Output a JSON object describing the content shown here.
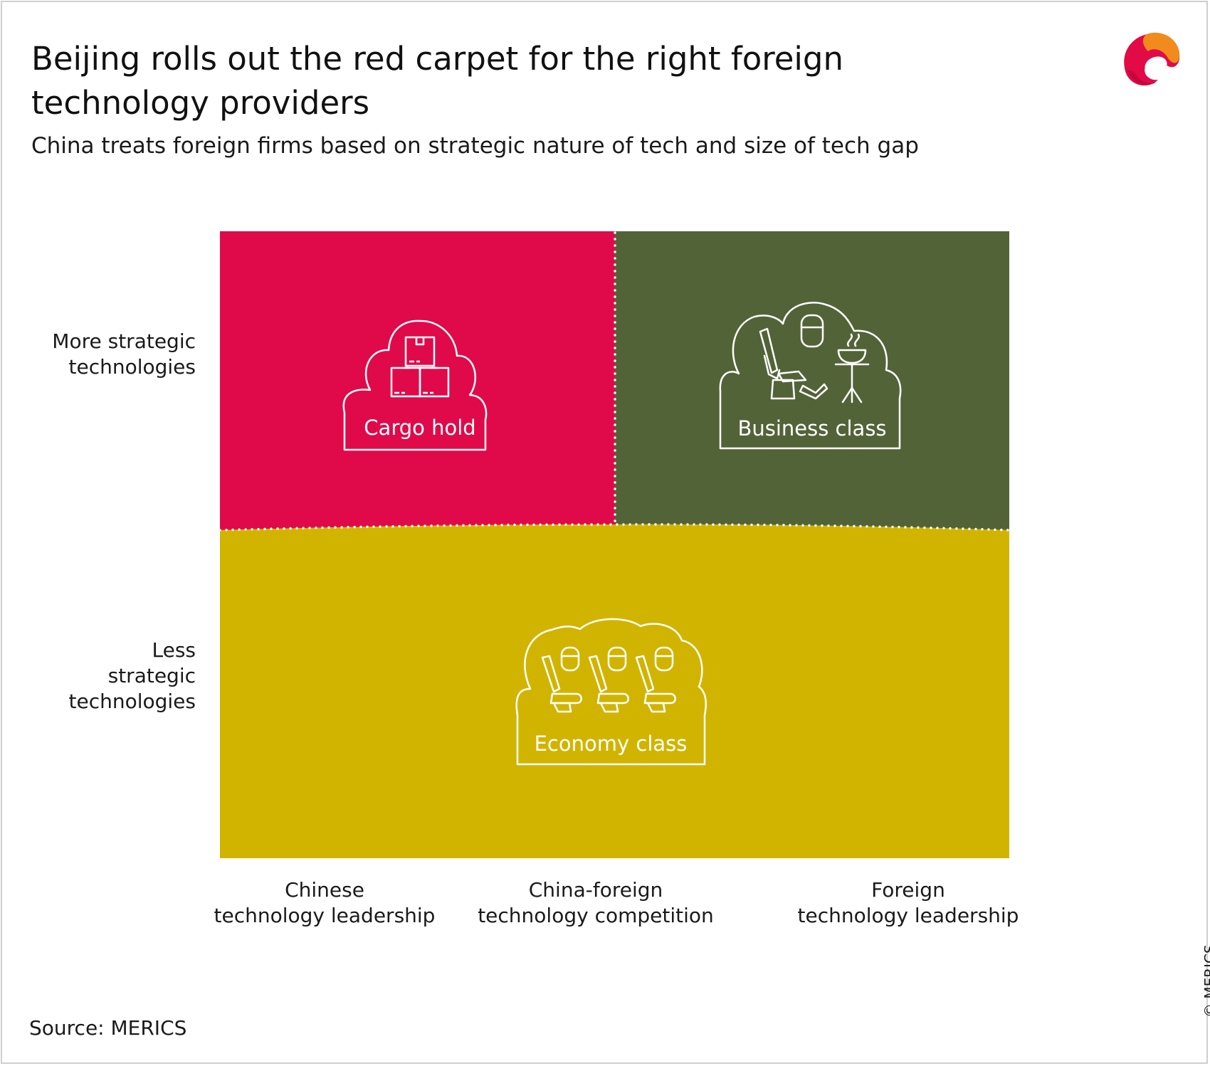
{
  "header": {
    "title": "Beijing rolls out the red carpet for the right foreign technology providers",
    "subtitle": "China treats foreign firms based on strategic nature of tech and size of tech gap"
  },
  "logo": {
    "icon": "merics-logo-icon",
    "colors": [
      "#e20a47",
      "#f08b1c"
    ]
  },
  "y_axis": {
    "top_label": "More strategic\ntechnologies",
    "bottom_label": "Less\nstrategic\ntechnologies"
  },
  "x_axis": {
    "labels": [
      "Chinese\ntechnology leadership",
      "China-foreign\ntechnology competition",
      "Foreign\ntechnology leadership"
    ]
  },
  "quadrants": {
    "cargo_hold": {
      "label": "Cargo hold",
      "color": "#e00a4a",
      "icon": "cargo-boxes-icon"
    },
    "business_class": {
      "label": "Business class",
      "color": "#536338",
      "icon": "business-seat-icon"
    },
    "economy_class": {
      "label": "Economy class",
      "color": "#d1b400",
      "icon": "economy-seats-icon"
    }
  },
  "footer": {
    "source": "Source: MERICS",
    "copyright": "© MERICS"
  }
}
